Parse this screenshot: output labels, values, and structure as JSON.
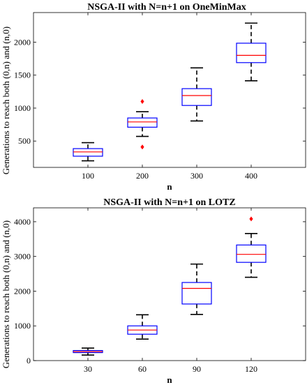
{
  "chart_data": [
    {
      "type": "box",
      "title": "NSGA-II with N=n+1 on OneMinMax",
      "xlabel": "n",
      "ylabel": "Generations to reach both (0,n) and (n,0)",
      "categories": [
        "100",
        "200",
        "300",
        "400"
      ],
      "ylim": [
        100,
        2450
      ],
      "yticks": [
        500,
        1000,
        1500,
        2000
      ],
      "boxes": [
        {
          "whisker_low": 200,
          "q1": 270,
          "median": 335,
          "q3": 385,
          "whisker_high": 475,
          "outliers": []
        },
        {
          "whisker_low": 570,
          "q1": 710,
          "median": 790,
          "q3": 850,
          "whisker_high": 945,
          "outliers": [
            1100,
            410
          ]
        },
        {
          "whisker_low": 805,
          "q1": 1040,
          "median": 1190,
          "q3": 1295,
          "whisker_high": 1610,
          "outliers": []
        },
        {
          "whisker_low": 1415,
          "q1": 1690,
          "median": 1800,
          "q3": 1985,
          "whisker_high": 2290,
          "outliers": []
        }
      ]
    },
    {
      "type": "box",
      "title": "NSGA-II with N=n+1 on LOTZ",
      "xlabel": "n",
      "ylabel": "Generations to reach both (0,n) and (n,0)",
      "categories": [
        "30",
        "60",
        "90",
        "120"
      ],
      "ylim": [
        0,
        4400
      ],
      "yticks": [
        0,
        1000,
        2000,
        3000,
        4000
      ],
      "boxes": [
        {
          "whisker_low": 160,
          "q1": 230,
          "median": 260,
          "q3": 290,
          "whisker_high": 360,
          "outliers": []
        },
        {
          "whisker_low": 620,
          "q1": 760,
          "median": 880,
          "q3": 1000,
          "whisker_high": 1320,
          "outliers": []
        },
        {
          "whisker_low": 1330,
          "q1": 1630,
          "median": 2080,
          "q3": 2250,
          "whisker_high": 2780,
          "outliers": []
        },
        {
          "whisker_low": 2400,
          "q1": 2830,
          "median": 3060,
          "q3": 3330,
          "whisker_high": 3660,
          "outliers": [
            4080
          ]
        }
      ]
    }
  ],
  "colors": {
    "box": "#0000ff",
    "median": "#ff0000",
    "outlier": "#ff0000",
    "whisker": "#000000"
  }
}
